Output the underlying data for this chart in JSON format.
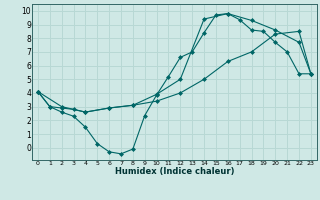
{
  "xlabel": "Humidex (Indice chaleur)",
  "background_color": "#cfe8e5",
  "grid_color": "#b8d8d4",
  "line_color": "#006666",
  "xlim": [
    -0.5,
    23.5
  ],
  "ylim": [
    -0.9,
    10.5
  ],
  "xticks": [
    0,
    1,
    2,
    3,
    4,
    5,
    6,
    7,
    8,
    9,
    10,
    11,
    12,
    13,
    14,
    15,
    16,
    17,
    18,
    19,
    20,
    21,
    22,
    23
  ],
  "yticks": [
    0,
    1,
    2,
    3,
    4,
    5,
    6,
    7,
    8,
    9,
    10
  ],
  "line1_x": [
    0,
    1,
    2,
    3,
    4,
    5,
    6,
    7,
    8,
    9,
    10,
    11,
    12,
    13,
    14,
    15,
    16,
    17,
    18,
    19,
    20,
    21,
    22,
    23
  ],
  "line1_y": [
    4.1,
    3.0,
    2.6,
    2.3,
    1.5,
    0.3,
    -0.3,
    -0.45,
    -0.1,
    2.35,
    3.85,
    5.2,
    6.6,
    7.0,
    8.4,
    9.7,
    9.8,
    9.35,
    8.6,
    8.5,
    7.7,
    7.0,
    5.4,
    5.4
  ],
  "line2_x": [
    0,
    1,
    2,
    3,
    4,
    6,
    8,
    10,
    12,
    14,
    16,
    18,
    20,
    22,
    23
  ],
  "line2_y": [
    4.1,
    3.0,
    2.9,
    2.8,
    2.6,
    2.9,
    3.1,
    3.4,
    4.0,
    5.0,
    6.3,
    7.0,
    8.3,
    8.5,
    5.4
  ],
  "line3_x": [
    0,
    2,
    4,
    6,
    8,
    10,
    12,
    14,
    16,
    18,
    20,
    22,
    23
  ],
  "line3_y": [
    4.1,
    3.0,
    2.6,
    2.9,
    3.1,
    3.9,
    5.0,
    9.4,
    9.8,
    9.3,
    8.6,
    7.7,
    5.4
  ]
}
